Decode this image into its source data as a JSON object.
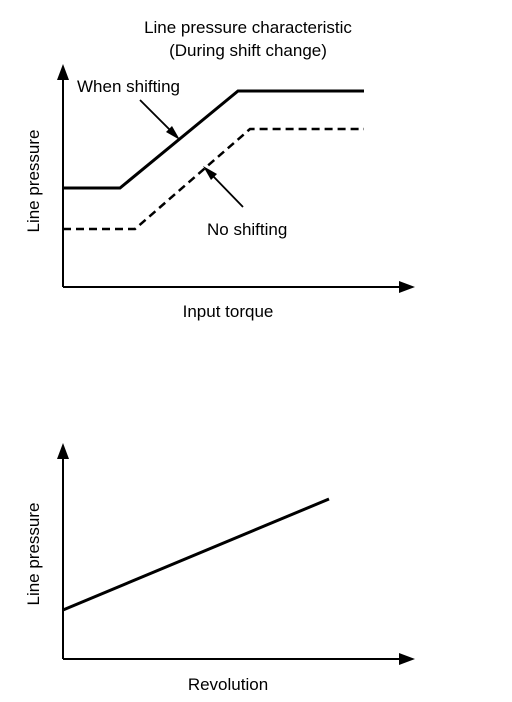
{
  "top_chart": {
    "title_line1": "Line pressure characteristic",
    "title_line2": "(During shift change)",
    "y_axis_label": "Line pressure",
    "x_axis_label": "Input torque",
    "when_shifting_label": "When shifting",
    "no_shifting_label": "No shifting"
  },
  "bottom_chart": {
    "y_axis_label": "Line pressure",
    "x_axis_label": "Revolution"
  },
  "colors": {
    "ink": "#000000",
    "background": "#ffffff"
  }
}
